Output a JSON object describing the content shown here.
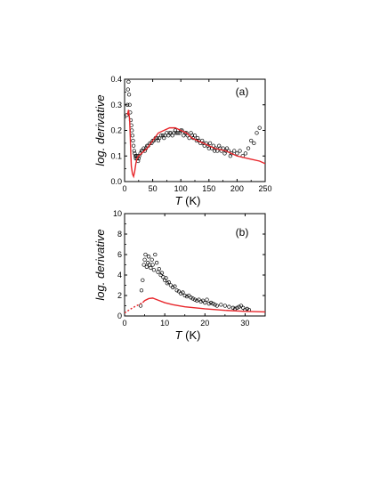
{
  "chart_data": [
    {
      "type": "scatter",
      "panel_label": "(a)",
      "xlabel": "T",
      "xlabel_unit": "(K)",
      "ylabel": "log. derivative",
      "xlim": [
        0,
        250
      ],
      "ylim": [
        0,
        0.4
      ],
      "xticks": [
        "0",
        "50",
        "100",
        "150",
        "200",
        "250"
      ],
      "yticks": [
        "0.0",
        "0.1",
        "0.2",
        "0.3",
        "0.4"
      ],
      "xtick_values": [
        0,
        50,
        100,
        150,
        200,
        250
      ],
      "ytick_values": [
        0,
        0.1,
        0.2,
        0.3,
        0.4
      ],
      "marker_color": "#000000",
      "line_color": "#e8262b",
      "series": [
        {
          "kind": "points",
          "x": [
            4,
            5,
            6,
            7,
            8,
            9,
            10,
            11,
            12,
            13,
            14,
            15,
            16,
            17,
            18,
            19,
            20,
            21,
            22,
            23,
            24,
            25,
            26,
            28,
            30,
            32,
            34,
            36,
            38,
            40,
            42,
            45,
            48,
            50,
            52,
            55,
            58,
            60,
            62,
            65,
            68,
            70,
            72,
            75,
            78,
            80,
            82,
            85,
            88,
            90,
            92,
            95,
            98,
            100,
            102,
            105,
            108,
            110,
            112,
            115,
            118,
            120,
            122,
            125,
            128,
            130,
            132,
            135,
            138,
            140,
            142,
            145,
            148,
            150,
            152,
            155,
            158,
            160,
            162,
            165,
            168,
            170,
            172,
            175,
            178,
            180,
            182,
            185,
            188,
            190,
            195,
            200,
            205,
            210,
            215,
            220,
            225,
            230,
            235,
            240
          ],
          "y": [
            0.26,
            0.3,
            0.36,
            0.39,
            0.34,
            0.3,
            0.27,
            0.24,
            0.22,
            0.2,
            0.18,
            0.16,
            0.14,
            0.12,
            0.11,
            0.1,
            0.09,
            0.1,
            0.09,
            0.1,
            0.08,
            0.09,
            0.1,
            0.11,
            0.12,
            0.12,
            0.13,
            0.12,
            0.13,
            0.14,
            0.14,
            0.15,
            0.15,
            0.16,
            0.16,
            0.17,
            0.17,
            0.16,
            0.17,
            0.18,
            0.18,
            0.17,
            0.18,
            0.19,
            0.18,
            0.19,
            0.19,
            0.18,
            0.19,
            0.2,
            0.19,
            0.19,
            0.19,
            0.2,
            0.2,
            0.18,
            0.19,
            0.19,
            0.18,
            0.17,
            0.19,
            0.18,
            0.17,
            0.18,
            0.16,
            0.17,
            0.16,
            0.15,
            0.16,
            0.15,
            0.14,
            0.15,
            0.14,
            0.13,
            0.15,
            0.13,
            0.14,
            0.12,
            0.13,
            0.12,
            0.14,
            0.13,
            0.12,
            0.13,
            0.11,
            0.12,
            0.13,
            0.12,
            0.1,
            0.11,
            0.12,
            0.11,
            0.12,
            0.1,
            0.11,
            0.13,
            0.16,
            0.15,
            0.19,
            0.21
          ]
        },
        {
          "kind": "line",
          "x": [
            5,
            7,
            9,
            10,
            11,
            12,
            14,
            16,
            18,
            20,
            22,
            25,
            30,
            35,
            40,
            50,
            60,
            70,
            80,
            90,
            100,
            110,
            120,
            140,
            160,
            180,
            200,
            220,
            240,
            250
          ],
          "y": [
            0.26,
            0.28,
            0.24,
            0.18,
            0.11,
            0.06,
            0.03,
            0.02,
            0.04,
            0.07,
            0.09,
            0.1,
            0.11,
            0.12,
            0.13,
            0.16,
            0.19,
            0.2,
            0.21,
            0.21,
            0.2,
            0.19,
            0.17,
            0.15,
            0.13,
            0.12,
            0.1,
            0.09,
            0.08,
            0.07
          ]
        }
      ]
    },
    {
      "type": "scatter",
      "panel_label": "(b)",
      "xlabel": "T",
      "xlabel_unit": "(K)",
      "ylabel": "log. derivative",
      "xlim": [
        0,
        35
      ],
      "ylim": [
        0,
        10
      ],
      "xticks": [
        "0",
        "10",
        "20",
        "30"
      ],
      "yticks": [
        "0",
        "2",
        "4",
        "6",
        "8",
        "10"
      ],
      "xtick_values": [
        0,
        10,
        20,
        30
      ],
      "ytick_values": [
        0,
        2,
        4,
        6,
        8,
        10
      ],
      "marker_color": "#000000",
      "line_color": "#e8262b",
      "series": [
        {
          "kind": "points",
          "x": [
            4,
            4.2,
            4.5,
            4.8,
            5,
            5.2,
            5.5,
            5.8,
            6,
            6.2,
            6.5,
            6.8,
            7,
            7.3,
            7.6,
            8,
            8.3,
            8.6,
            9,
            9.3,
            9.6,
            10,
            10.3,
            10.6,
            11,
            11.5,
            12,
            12.5,
            13,
            13.5,
            14,
            14.5,
            15,
            15.5,
            16,
            16.5,
            17,
            17.5,
            18,
            18.5,
            19,
            19.5,
            20,
            20.5,
            21,
            21.5,
            22,
            22.5,
            23,
            24,
            25,
            26,
            27,
            27.5,
            28,
            28.5,
            29,
            29.5,
            30,
            30.5,
            31
          ],
          "y": [
            1.0,
            2.5,
            3.5,
            5.0,
            5.5,
            6.0,
            4.8,
            5.2,
            5.8,
            5.0,
            4.7,
            5.5,
            5.0,
            4.5,
            6.0,
            5.2,
            4.3,
            4.6,
            4.0,
            4.2,
            3.8,
            3.5,
            3.7,
            3.2,
            3.3,
            3.0,
            2.8,
            2.9,
            2.5,
            2.4,
            2.2,
            2.3,
            2.0,
            1.9,
            2.0,
            1.8,
            1.7,
            1.6,
            1.5,
            1.6,
            1.4,
            1.5,
            1.3,
            1.6,
            1.2,
            1.3,
            1.2,
            1.1,
            1.0,
            1.1,
            1.0,
            0.9,
            0.8,
            0.7,
            0.8,
            0.9,
            1.0,
            0.8,
            0.6,
            0.7,
            0.6
          ]
        },
        {
          "kind": "line",
          "x": [
            4.5,
            5,
            6,
            7,
            8,
            10,
            12,
            15,
            20,
            25,
            30,
            35
          ],
          "y": [
            1.3,
            1.5,
            1.7,
            1.75,
            1.6,
            1.3,
            1.1,
            0.9,
            0.7,
            0.55,
            0.45,
            0.4
          ]
        },
        {
          "kind": "dashed",
          "x": [
            0,
            1,
            2,
            3,
            4,
            4.5
          ],
          "y": [
            0.3,
            0.55,
            0.8,
            1.0,
            1.2,
            1.3
          ]
        }
      ]
    }
  ]
}
